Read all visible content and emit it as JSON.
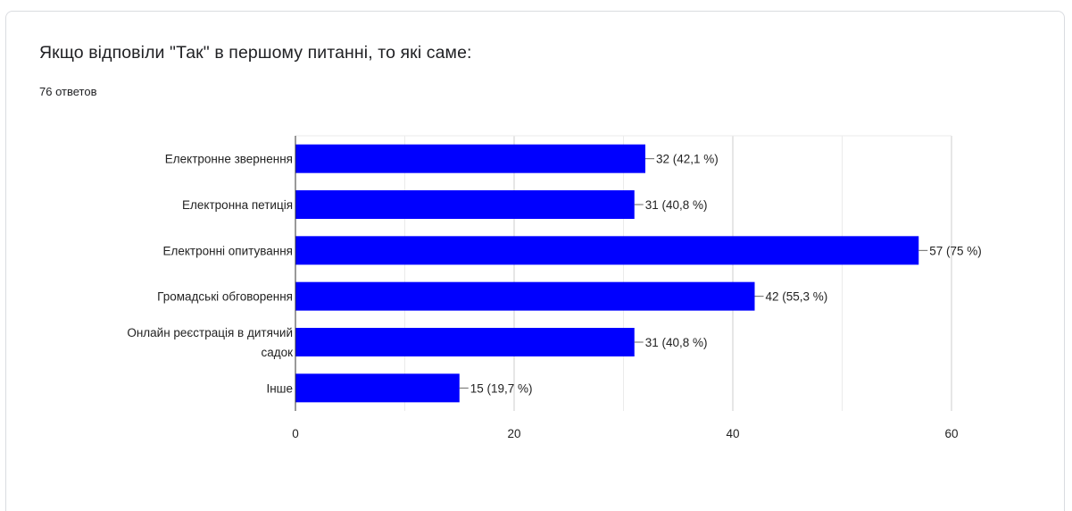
{
  "question": {
    "title": "Якщо відповіли \"Так\" в першому питанні, то які саме:",
    "responses": "76 ответов"
  },
  "chart_data": {
    "type": "bar",
    "orientation": "horizontal",
    "title": "",
    "xlabel": "",
    "ylabel": "",
    "categories": [
      [
        "Електронне звернення"
      ],
      [
        "Електронна петиція"
      ],
      [
        "Електронні опитування"
      ],
      [
        "Громадські обговорення"
      ],
      [
        "Онлайн реєстрація в дитячий",
        "садок"
      ],
      [
        "Інше"
      ]
    ],
    "values": [
      32,
      31,
      57,
      42,
      31,
      15
    ],
    "value_labels": [
      "32 (42,1 %)",
      "31 (40,8 %)",
      "57 (75 %)",
      "42 (55,3 %)",
      "31 (40,8 %)",
      "15 (19,7 %)"
    ],
    "xlim": [
      0,
      60
    ],
    "xticks": [
      0,
      20,
      40,
      60
    ],
    "grid": true,
    "bar_color": "#0000ff"
  }
}
